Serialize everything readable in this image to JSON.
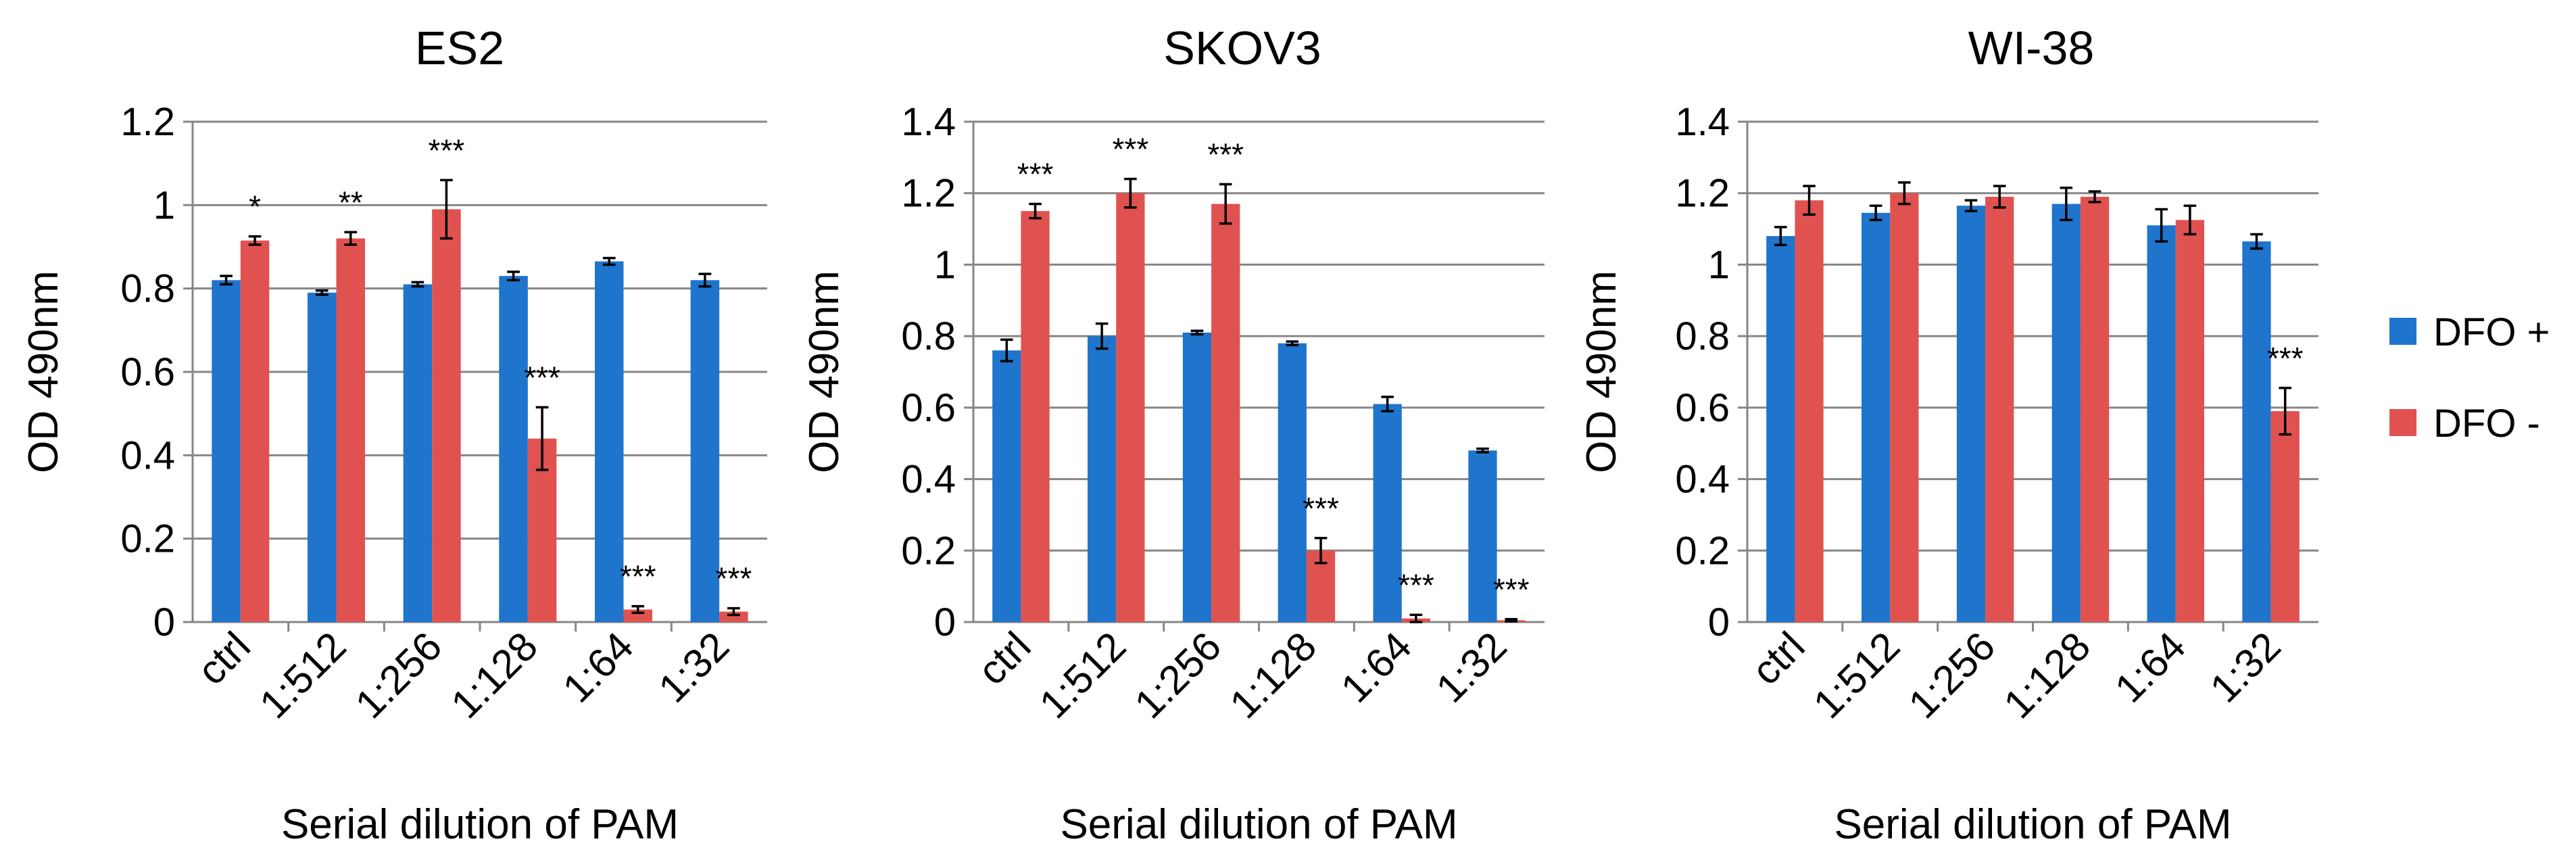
{
  "colors": {
    "dfo_plus": "#1F74CC",
    "dfo_minus": "#E05250"
  },
  "legend": [
    {
      "label": "DFO +",
      "color": "#1F74CC"
    },
    {
      "label": "DFO -",
      "color": "#E05250"
    }
  ],
  "chart_data": [
    {
      "type": "bar",
      "title": "ES2",
      "xlabel": "Serial dilution of PAM",
      "ylabel": "OD 490nm",
      "ylim": [
        0,
        1.2
      ],
      "yticks": [
        "0",
        "0.2",
        "0.4",
        "0.6",
        "0.8",
        "1",
        "1.2"
      ],
      "ytick_values": [
        0,
        0.2,
        0.4,
        0.6,
        0.8,
        1,
        1.2
      ],
      "categories": [
        "ctrl",
        "1:512",
        "1:256",
        "1:128",
        "1:64",
        "1:32"
      ],
      "series": [
        {
          "name": "DFO +",
          "values": [
            0.82,
            0.79,
            0.81,
            0.83,
            0.865,
            0.82
          ],
          "errors": [
            0.01,
            0.005,
            0.005,
            0.01,
            0.008,
            0.015
          ]
        },
        {
          "name": "DFO -",
          "values": [
            0.915,
            0.92,
            0.99,
            0.44,
            0.03,
            0.025
          ],
          "errors": [
            0.01,
            0.015,
            0.07,
            0.075,
            0.008,
            0.008
          ]
        }
      ],
      "annotations": [
        "*",
        "**",
        "***",
        "***",
        "***",
        "***"
      ]
    },
    {
      "type": "bar",
      "title": "SKOV3",
      "xlabel": "Serial dilution of PAM",
      "ylabel": "OD 490nm",
      "ylim": [
        0,
        1.4
      ],
      "yticks": [
        "0",
        "0.2",
        "0.4",
        "0.6",
        "0.8",
        "1",
        "1.2",
        "1.4"
      ],
      "ytick_values": [
        0,
        0.2,
        0.4,
        0.6,
        0.8,
        1,
        1.2,
        1.4
      ],
      "categories": [
        "ctrl",
        "1:512",
        "1:256",
        "1:128",
        "1:64",
        "1:32"
      ],
      "series": [
        {
          "name": "DFO +",
          "values": [
            0.76,
            0.8,
            0.81,
            0.78,
            0.61,
            0.48
          ],
          "errors": [
            0.03,
            0.035,
            0.005,
            0.005,
            0.02,
            0.005
          ]
        },
        {
          "name": "DFO -",
          "values": [
            1.15,
            1.2,
            1.17,
            0.2,
            0.01,
            0.005
          ],
          "errors": [
            0.02,
            0.04,
            0.055,
            0.035,
            0.01,
            0.003
          ]
        }
      ],
      "annotations": [
        "***",
        "***",
        "***",
        "***",
        "***",
        "***"
      ]
    },
    {
      "type": "bar",
      "title": "WI-38",
      "xlabel": "Serial dilution of PAM",
      "ylabel": "OD 490nm",
      "ylim": [
        0,
        1.4
      ],
      "yticks": [
        "0",
        "0.2",
        "0.4",
        "0.6",
        "0.8",
        "1",
        "1.2",
        "1.4"
      ],
      "ytick_values": [
        0,
        0.2,
        0.4,
        0.6,
        0.8,
        1,
        1.2,
        1.4
      ],
      "categories": [
        "ctrl",
        "1:512",
        "1:256",
        "1:128",
        "1:64",
        "1:32"
      ],
      "series": [
        {
          "name": "DFO +",
          "values": [
            1.08,
            1.145,
            1.165,
            1.17,
            1.11,
            1.065
          ],
          "errors": [
            0.025,
            0.02,
            0.015,
            0.045,
            0.045,
            0.02
          ]
        },
        {
          "name": "DFO -",
          "values": [
            1.18,
            1.2,
            1.19,
            1.19,
            1.125,
            0.59
          ],
          "errors": [
            0.04,
            0.03,
            0.03,
            0.015,
            0.04,
            0.065
          ]
        }
      ],
      "annotations": [
        "",
        "",
        "",
        "",
        "",
        "***"
      ]
    }
  ]
}
